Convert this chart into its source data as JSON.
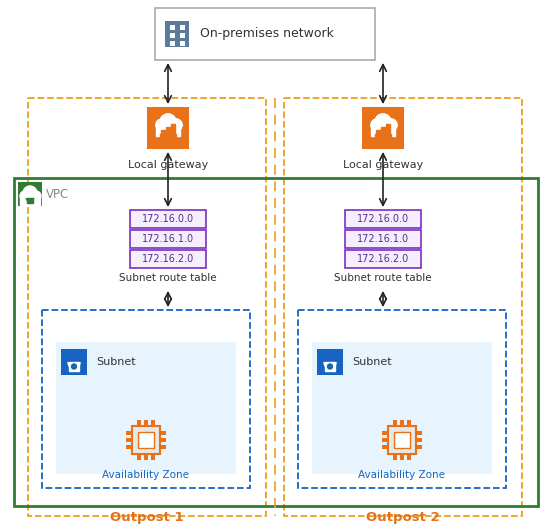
{
  "bg_color": "#ffffff",
  "fig_w": 5.51,
  "fig_h": 5.31,
  "dpi": 100,
  "outpost_border_color": "#E8A020",
  "vpc_border_color": "#2E7D32",
  "vpc_icon_color": "#2E7D32",
  "az_border_color": "#1565C0",
  "az_fill": "#E8F4FD",
  "subnet_icon_color": "#1565C0",
  "lgw_icon_color": "#E8711A",
  "route_border_color": "#7B2FBE",
  "route_text_color": "#5B2C8D",
  "route_fill": "#F5EEFF",
  "outpost_label_color": "#E8711A",
  "font_color": "#333333",
  "arrow_color": "#222222",
  "on_prem_label": "On-premises network",
  "lgw_label": "Local gateway",
  "srt_label": "Subnet route table",
  "az_label": "Availability Zone",
  "subnet_label": "Subnet",
  "vpc_label": "VPC",
  "outpost1_label": "Outpost 1",
  "outpost2_label": "Outpost 2",
  "route_entries": [
    "172.16.0.0",
    "172.16.1.0",
    "172.16.2.0"
  ]
}
